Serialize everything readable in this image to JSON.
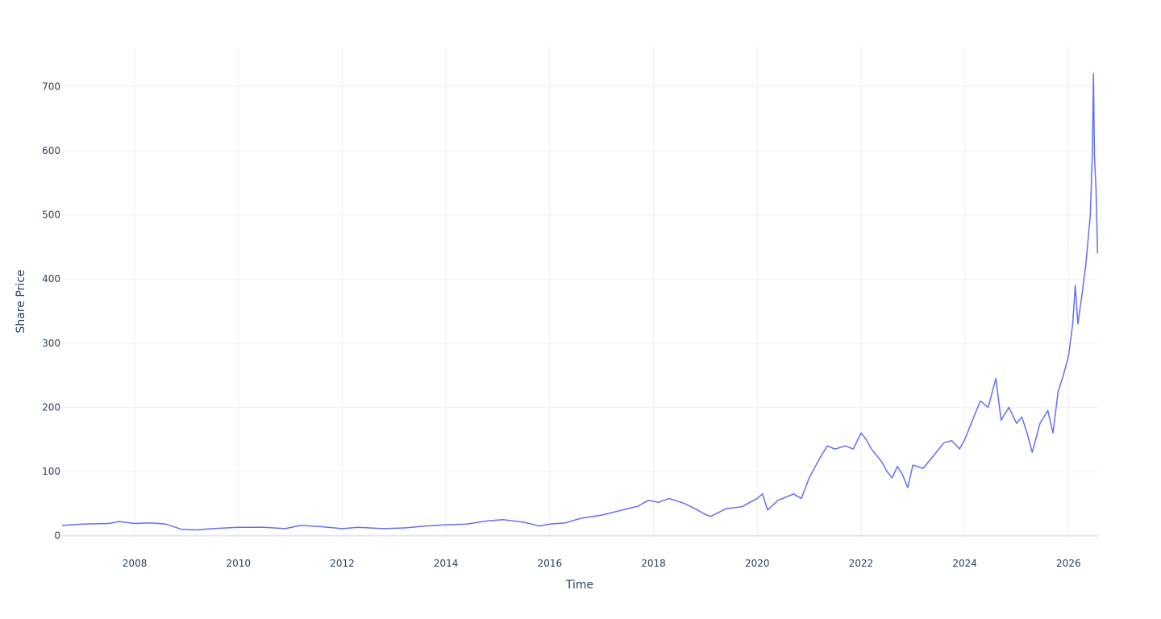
{
  "chart_data": {
    "type": "line",
    "x_label": "Time",
    "y_label": "Share Price",
    "x": [
      2006.6,
      2007.0,
      2007.5,
      2007.7,
      2008.0,
      2008.3,
      2008.6,
      2008.9,
      2009.2,
      2009.5,
      2010.0,
      2010.5,
      2010.9,
      2011.2,
      2011.6,
      2012.0,
      2012.3,
      2012.8,
      2013.2,
      2013.6,
      2014.0,
      2014.4,
      2014.8,
      2015.1,
      2015.5,
      2015.8,
      2016.0,
      2016.3,
      2016.6,
      2017.0,
      2017.4,
      2017.7,
      2017.9,
      2018.1,
      2018.3,
      2018.6,
      2018.8,
      2019.0,
      2019.1,
      2019.4,
      2019.7,
      2020.0,
      2020.1,
      2020.2,
      2020.4,
      2020.7,
      2020.85,
      2021.0,
      2021.2,
      2021.35,
      2021.5,
      2021.7,
      2021.85,
      2022.0,
      2022.1,
      2022.2,
      2022.4,
      2022.5,
      2022.6,
      2022.7,
      2022.8,
      2022.9,
      2023.0,
      2023.2,
      2023.4,
      2023.6,
      2023.75,
      2023.9,
      2024.0,
      2024.15,
      2024.3,
      2024.45,
      2024.6,
      2024.7,
      2024.85,
      2025.0,
      2025.1,
      2025.2,
      2025.3,
      2025.45,
      2025.6,
      2025.7,
      2025.8,
      2025.9,
      2026.0,
      2026.08,
      2026.13,
      2026.18,
      2026.25,
      2026.33,
      2026.42,
      2026.46,
      2026.48,
      2026.5,
      2026.53,
      2026.56
    ],
    "series": [
      {
        "name": "Share Price",
        "color": "#636efa",
        "values": [
          16,
          18,
          19,
          22,
          19,
          20,
          18,
          10,
          9,
          11,
          13,
          13,
          11,
          16,
          14,
          11,
          13,
          11,
          12,
          15,
          17,
          18,
          23,
          25,
          21,
          15,
          18,
          20,
          27,
          32,
          40,
          46,
          55,
          52,
          58,
          50,
          42,
          33,
          30,
          42,
          45,
          58,
          65,
          40,
          55,
          65,
          58,
          90,
          120,
          140,
          135,
          140,
          135,
          160,
          150,
          135,
          115,
          100,
          90,
          108,
          95,
          75,
          110,
          105,
          125,
          145,
          148,
          135,
          150,
          180,
          210,
          200,
          245,
          180,
          200,
          175,
          185,
          160,
          130,
          175,
          195,
          160,
          225,
          250,
          280,
          330,
          390,
          330,
          370,
          420,
          500,
          600,
          720,
          590,
          540,
          440
        ]
      }
    ],
    "xlim": [
      2006.6,
      2026.57
    ],
    "xticks": [
      2008,
      2010,
      2012,
      2014,
      2016,
      2018,
      2020,
      2022,
      2024,
      2026
    ],
    "ylim": [
      -3,
      762
    ],
    "yticks": [
      0,
      100,
      200,
      300,
      400,
      500,
      600,
      700
    ],
    "grid": true
  }
}
